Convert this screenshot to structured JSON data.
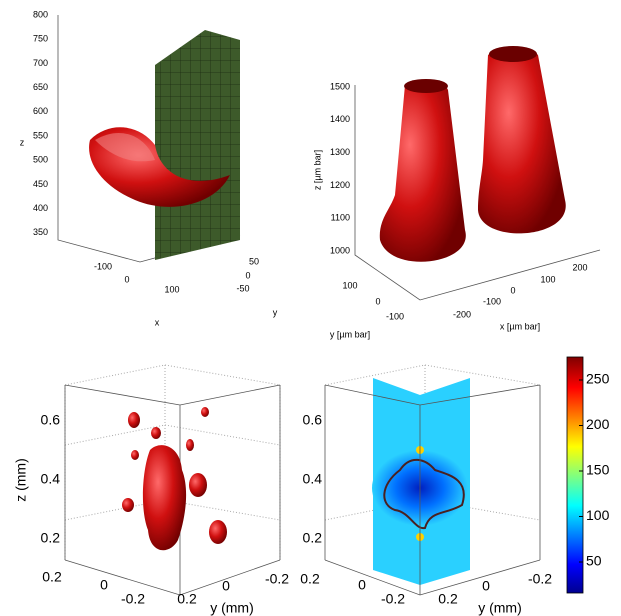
{
  "panels": [
    {
      "zticks": [
        800,
        750,
        700,
        650,
        600,
        550,
        500,
        450,
        400,
        350
      ],
      "zlabel": "z",
      "xticks": [
        -100,
        0,
        100
      ],
      "xlabel": "x",
      "yticks": [
        50,
        0,
        -50
      ],
      "ylabel": "y"
    },
    {
      "zticks": [
        1500,
        1400,
        1300,
        1200,
        1100,
        1000
      ],
      "zlabel": "z [µm bar]",
      "xticks": [
        -200,
        -100,
        0,
        100,
        200
      ],
      "xlabel": "x [µm bar]",
      "yticks": [
        100,
        0,
        -100
      ],
      "ylabel": "y [µm bar]"
    },
    {
      "zticks": [
        0.6,
        0.4,
        0.2
      ],
      "zlabel": "z (mm)",
      "xticks": [
        0.2,
        0,
        -0.2
      ],
      "yticks": [
        0.2,
        0,
        -0.2
      ],
      "ylabel": "y (mm)"
    },
    {
      "zticks": [
        0.6,
        0.4,
        0.2
      ],
      "xticks": [
        0.2,
        0,
        -0.2
      ],
      "yticks": [
        0.2,
        0,
        -0.2
      ],
      "ylabel": "y (mm)"
    }
  ],
  "colorbar": {
    "ticks": [
      250,
      200,
      150,
      100,
      50
    ]
  }
}
